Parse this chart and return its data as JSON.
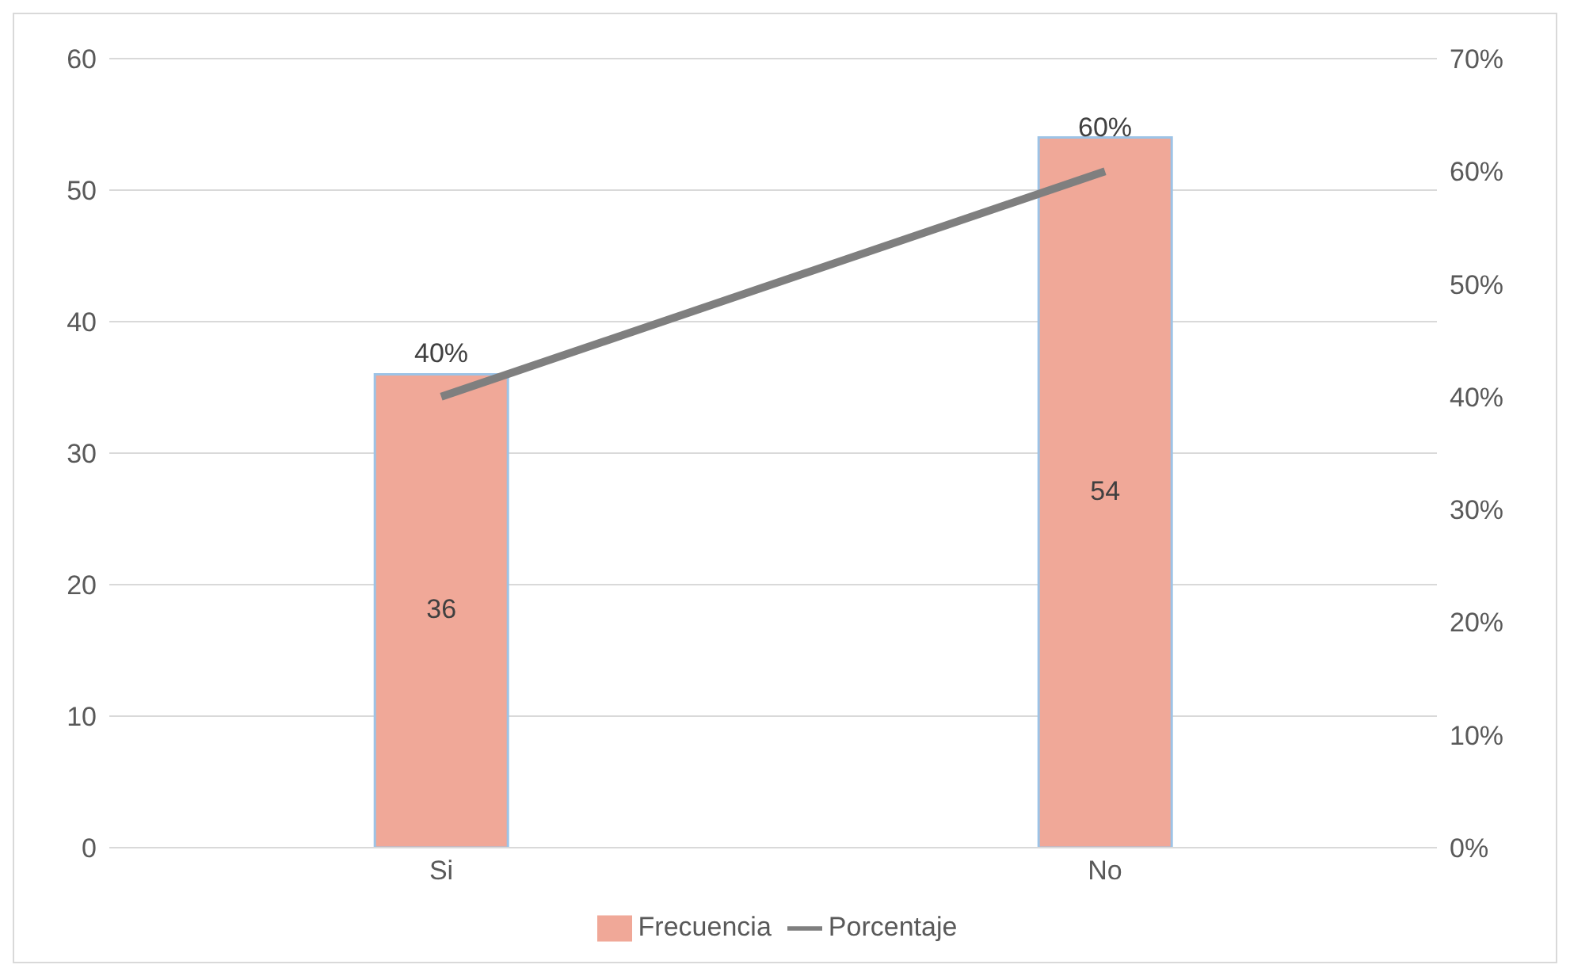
{
  "chart_data": {
    "type": "bar",
    "categories": [
      "Si",
      "No"
    ],
    "series": [
      {
        "name": "Frecuencia",
        "color": "#f0a898",
        "values": [
          36,
          54
        ],
        "value_labels": [
          "36",
          "54"
        ]
      },
      {
        "name": "Porcentaje",
        "type": "line",
        "axis": "y2",
        "color": "#7f7f7f",
        "values": [
          40,
          60
        ],
        "value_labels": [
          "40%",
          "60%"
        ]
      }
    ],
    "ylim": [
      0,
      60
    ],
    "yticks": [
      0,
      10,
      20,
      30,
      40,
      50,
      60
    ],
    "y2lim": [
      0,
      70
    ],
    "y2ticks": [
      {
        "value": 0,
        "label": "0%"
      },
      {
        "value": 10,
        "label": "10%"
      },
      {
        "value": 20,
        "label": "20%"
      },
      {
        "value": 30,
        "label": "30%"
      },
      {
        "value": 40,
        "label": "40%"
      },
      {
        "value": 50,
        "label": "50%"
      },
      {
        "value": 60,
        "label": "60%"
      },
      {
        "value": 70,
        "label": "70%"
      }
    ],
    "grid": "y",
    "legend": "bottom",
    "marker": "none",
    "line_style": "solid"
  }
}
